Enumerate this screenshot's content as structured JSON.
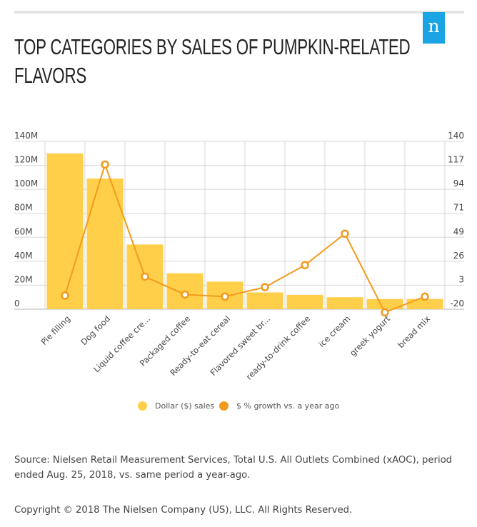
{
  "header": {
    "title_line1": "TOP CATEGORIES BY SALES OF PUMPKIN-RELATED",
    "title_line2": "FLAVORS",
    "logo_text": "n"
  },
  "colors": {
    "bars": "#ffcf4a",
    "line": "#f39a1c",
    "logo": "#1aa4e3",
    "grid": "#d7d7d7"
  },
  "chart_data": {
    "type": "bar",
    "title": "TOP CATEGORIES BY SALES OF PUMPKIN-RELATED FLAVORS",
    "categories": [
      "Pie filling",
      "Dog food",
      "Liquid coffee cre...",
      "Packaged coffee",
      "Ready-to-eat cereal",
      "Flavored sweet br...",
      "ready-to-drink coffee",
      "ice cream",
      "greek yogurt",
      "bread mix"
    ],
    "series": [
      {
        "name": "Dollar ($) sales",
        "type": "bar",
        "axis": "left",
        "values": [
          130000000,
          109000000,
          54000000,
          30000000,
          23000000,
          14000000,
          12000000,
          10000000,
          8500000,
          8500000
        ]
      },
      {
        "name": "$ % growth vs. a year ago",
        "type": "line",
        "axis": "right",
        "values": [
          -7,
          118,
          11,
          -6,
          -8,
          1,
          22,
          52,
          -23,
          -8
        ]
      }
    ],
    "left_axis": {
      "ticks": [
        "0",
        "20M",
        "40M",
        "60M",
        "80M",
        "100M",
        "120M",
        "140M"
      ],
      "range": [
        0,
        140000000
      ]
    },
    "right_axis": {
      "ticks": [
        "-20",
        "3",
        "26",
        "49",
        "71",
        "94",
        "117",
        "140"
      ],
      "range": [
        -20,
        140
      ]
    },
    "grid": true,
    "legend_position": "bottom"
  },
  "legend": {
    "bar_label": "Dollar ($) sales",
    "line_label": "$ % growth vs. a year ago"
  },
  "footer": {
    "source": "Source: Nielsen Retail Measurement Services, Total U.S. All Outlets Combined (xAOC), period ended Aug. 25, 2018, vs. same period a year-ago.",
    "copyright": "Copyright © 2018 The Nielsen Company (US), LLC. All Rights Reserved."
  }
}
